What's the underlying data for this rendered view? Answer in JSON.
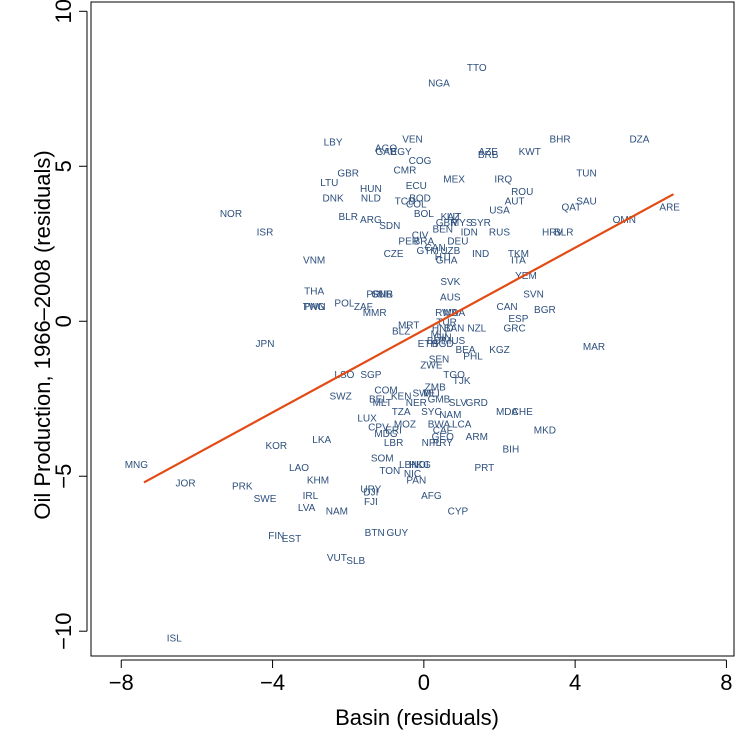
{
  "chart_data": {
    "type": "scatter",
    "xlabel": "Basin (residuals)",
    "ylabel": "Oil Production, 1966–2008 (residuals)",
    "xlim": [
      -8.8,
      8.2
    ],
    "ylim": [
      -10.8,
      10.3
    ],
    "xticks": [
      -8,
      -4,
      0,
      4,
      8
    ],
    "yticks": [
      -10,
      -5,
      0,
      5,
      10
    ],
    "xtick_labels": [
      "−8",
      "−4",
      "0",
      "4",
      "8"
    ],
    "ytick_labels": [
      "−10",
      "−5",
      "0",
      "5",
      "10"
    ],
    "grid": false,
    "fit_line": {
      "x": [
        -7.4,
        6.6
      ],
      "y": [
        -5.2,
        4.1
      ],
      "color": "#e34a14"
    },
    "label_color": "#2d4f7c",
    "points": [
      {
        "label": "TTO",
        "x": 1.4,
        "y": 8.2
      },
      {
        "label": "NGA",
        "x": 0.4,
        "y": 7.7
      },
      {
        "label": "BHR",
        "x": 3.6,
        "y": 5.9
      },
      {
        "label": "DZA",
        "x": 5.7,
        "y": 5.9
      },
      {
        "label": "LBY",
        "x": -2.4,
        "y": 5.8
      },
      {
        "label": "VEN",
        "x": -0.3,
        "y": 5.9
      },
      {
        "label": "AGO",
        "x": -1.0,
        "y": 5.6
      },
      {
        "label": "GAB",
        "x": -1.0,
        "y": 5.5
      },
      {
        "label": "EGY",
        "x": -0.6,
        "y": 5.5
      },
      {
        "label": "AZE",
        "x": 1.7,
        "y": 5.5
      },
      {
        "label": "BRB",
        "x": 1.7,
        "y": 5.4
      },
      {
        "label": "KWT",
        "x": 2.8,
        "y": 5.5
      },
      {
        "label": "COG",
        "x": -0.1,
        "y": 5.2
      },
      {
        "label": "CMR",
        "x": -0.5,
        "y": 4.9
      },
      {
        "label": "GBR",
        "x": -2.0,
        "y": 4.8
      },
      {
        "label": "TUN",
        "x": 4.3,
        "y": 4.8
      },
      {
        "label": "MEX",
        "x": 0.8,
        "y": 4.6
      },
      {
        "label": "IRQ",
        "x": 2.1,
        "y": 4.6
      },
      {
        "label": "LTU",
        "x": -2.5,
        "y": 4.5
      },
      {
        "label": "ECU",
        "x": -0.2,
        "y": 4.4
      },
      {
        "label": "HUN",
        "x": -1.4,
        "y": 4.3
      },
      {
        "label": "ROU",
        "x": 2.6,
        "y": 4.2
      },
      {
        "label": "DNK",
        "x": -2.4,
        "y": 4.0
      },
      {
        "label": "NLD",
        "x": -1.4,
        "y": 4.0
      },
      {
        "label": "BOD",
        "x": -0.1,
        "y": 4.0
      },
      {
        "label": "TCD",
        "x": -0.5,
        "y": 3.9
      },
      {
        "label": "AUT",
        "x": 2.4,
        "y": 3.9
      },
      {
        "label": "SAU",
        "x": 4.3,
        "y": 3.9
      },
      {
        "label": "COL",
        "x": -0.2,
        "y": 3.8
      },
      {
        "label": "QAT",
        "x": 3.9,
        "y": 3.7
      },
      {
        "label": "NOR",
        "x": -5.1,
        "y": 3.5
      },
      {
        "label": "USA",
        "x": 2.0,
        "y": 3.6
      },
      {
        "label": "ARE",
        "x": 6.5,
        "y": 3.7
      },
      {
        "label": "BOL",
        "x": 0.0,
        "y": 3.5
      },
      {
        "label": "KAZ",
        "x": 0.7,
        "y": 3.4
      },
      {
        "label": "LIT",
        "x": 0.8,
        "y": 3.4
      },
      {
        "label": "MYS",
        "x": 1.0,
        "y": 3.2
      },
      {
        "label": "SYR",
        "x": 1.5,
        "y": 3.2
      },
      {
        "label": "BLR",
        "x": -2.0,
        "y": 3.4
      },
      {
        "label": "ARG",
        "x": -1.4,
        "y": 3.3
      },
      {
        "label": "OMN",
        "x": 5.3,
        "y": 3.3
      },
      {
        "label": "GBR",
        "x": 0.6,
        "y": 3.2
      },
      {
        "label": "SDN",
        "x": -0.9,
        "y": 3.1
      },
      {
        "label": "BEN",
        "x": 0.5,
        "y": 3.0
      },
      {
        "label": "IDN",
        "x": 1.2,
        "y": 2.9
      },
      {
        "label": "RUS",
        "x": 2.0,
        "y": 2.9
      },
      {
        "label": "HRV",
        "x": 3.4,
        "y": 2.9
      },
      {
        "label": "BLR",
        "x": 3.7,
        "y": 2.9
      },
      {
        "label": "ISR",
        "x": -4.2,
        "y": 2.9
      },
      {
        "label": "CIV",
        "x": -0.1,
        "y": 2.8
      },
      {
        "label": "PER",
        "x": -0.4,
        "y": 2.6
      },
      {
        "label": "BRA",
        "x": 0.0,
        "y": 2.6
      },
      {
        "label": "DEU",
        "x": 0.9,
        "y": 2.6
      },
      {
        "label": "CAN",
        "x": 0.3,
        "y": 2.4
      },
      {
        "label": "CZE",
        "x": -0.8,
        "y": 2.2
      },
      {
        "label": "GTM",
        "x": 0.1,
        "y": 2.3
      },
      {
        "label": "UZB",
        "x": 0.7,
        "y": 2.3
      },
      {
        "label": "IND",
        "x": 1.5,
        "y": 2.2
      },
      {
        "label": "TKM",
        "x": 2.5,
        "y": 2.2
      },
      {
        "label": "HTI",
        "x": 0.5,
        "y": 2.1
      },
      {
        "label": "GHA",
        "x": 0.6,
        "y": 2.0
      },
      {
        "label": "ITA",
        "x": 2.5,
        "y": 2.0
      },
      {
        "label": "VNM",
        "x": -2.9,
        "y": 2.0
      },
      {
        "label": "YEM",
        "x": 2.7,
        "y": 1.5
      },
      {
        "label": "SVK",
        "x": 0.7,
        "y": 1.3
      },
      {
        "label": "THA",
        "x": -2.9,
        "y": 1.0
      },
      {
        "label": "SVN",
        "x": 2.9,
        "y": 0.9
      },
      {
        "label": "PRI",
        "x": -1.3,
        "y": 0.9
      },
      {
        "label": "SUR",
        "x": -1.1,
        "y": 0.9
      },
      {
        "label": "GNB",
        "x": -1.1,
        "y": 0.9
      },
      {
        "label": "AUS",
        "x": 0.7,
        "y": 0.8
      },
      {
        "label": "POL",
        "x": -2.1,
        "y": 0.6
      },
      {
        "label": "ZAF",
        "x": -1.6,
        "y": 0.5
      },
      {
        "label": "CAN",
        "x": 2.2,
        "y": 0.5
      },
      {
        "label": "TWN",
        "x": -2.9,
        "y": 0.5
      },
      {
        "label": "PNG",
        "x": -2.9,
        "y": 0.5
      },
      {
        "label": "BGR",
        "x": 3.2,
        "y": 0.4
      },
      {
        "label": "MMR",
        "x": -1.3,
        "y": 0.3
      },
      {
        "label": "RWA",
        "x": 0.6,
        "y": 0.3
      },
      {
        "label": "MDA",
        "x": 0.8,
        "y": 0.3
      },
      {
        "label": "ESP",
        "x": 2.5,
        "y": 0.1
      },
      {
        "label": "TUR",
        "x": 0.6,
        "y": 0.0
      },
      {
        "label": "MRT",
        "x": -0.4,
        "y": -0.1
      },
      {
        "label": "GRC",
        "x": 2.4,
        "y": -0.2
      },
      {
        "label": "HND",
        "x": 0.5,
        "y": -0.2
      },
      {
        "label": "BAN",
        "x": 0.8,
        "y": -0.2
      },
      {
        "label": "NZL",
        "x": 1.4,
        "y": -0.2
      },
      {
        "label": "BLZ",
        "x": -0.6,
        "y": -0.3
      },
      {
        "label": "MLI",
        "x": 0.4,
        "y": -0.4
      },
      {
        "label": "GIN",
        "x": 0.5,
        "y": -0.5
      },
      {
        "label": "BDI",
        "x": 0.3,
        "y": -0.6
      },
      {
        "label": "MUS",
        "x": 0.8,
        "y": -0.6
      },
      {
        "label": "ETH",
        "x": 0.1,
        "y": -0.7
      },
      {
        "label": "BGD",
        "x": 0.5,
        "y": -0.7
      },
      {
        "label": "KGZ",
        "x": 2.0,
        "y": -0.9
      },
      {
        "label": "MAR",
        "x": 4.5,
        "y": -0.8
      },
      {
        "label": "JPN",
        "x": -4.2,
        "y": -0.7
      },
      {
        "label": "BEA",
        "x": 1.1,
        "y": -0.9
      },
      {
        "label": "PHL",
        "x": 1.3,
        "y": -1.1
      },
      {
        "label": "SEN",
        "x": 0.4,
        "y": -1.2
      },
      {
        "label": "ZWE",
        "x": 0.2,
        "y": -1.4
      },
      {
        "label": "LSO",
        "x": -2.1,
        "y": -1.7
      },
      {
        "label": "SGP",
        "x": -1.4,
        "y": -1.7
      },
      {
        "label": "TGO",
        "x": 0.8,
        "y": -1.7
      },
      {
        "label": "TJK",
        "x": 1.0,
        "y": -1.9
      },
      {
        "label": "ZMB",
        "x": 0.3,
        "y": -2.1
      },
      {
        "label": "COM",
        "x": -1.0,
        "y": -2.2
      },
      {
        "label": "SWE",
        "x": 0.0,
        "y": -2.3
      },
      {
        "label": "MLI",
        "x": 0.2,
        "y": -2.3
      },
      {
        "label": "SWZ",
        "x": -2.2,
        "y": -2.4
      },
      {
        "label": "BEL",
        "x": -1.2,
        "y": -2.5
      },
      {
        "label": "KEN",
        "x": -0.6,
        "y": -2.4
      },
      {
        "label": "GMB",
        "x": 0.4,
        "y": -2.5
      },
      {
        "label": "SLV",
        "x": 0.9,
        "y": -2.6
      },
      {
        "label": "GRD",
        "x": 1.4,
        "y": -2.6
      },
      {
        "label": "MLT",
        "x": -1.1,
        "y": -2.6
      },
      {
        "label": "NER",
        "x": -0.2,
        "y": -2.6
      },
      {
        "label": "TZA",
        "x": -0.6,
        "y": -2.9
      },
      {
        "label": "SYC",
        "x": 0.2,
        "y": -2.9
      },
      {
        "label": "NAM",
        "x": 0.7,
        "y": -3.0
      },
      {
        "label": "MDA",
        "x": 2.2,
        "y": -2.9
      },
      {
        "label": "CHE",
        "x": 2.6,
        "y": -2.9
      },
      {
        "label": "LUX",
        "x": -1.5,
        "y": -3.1
      },
      {
        "label": "MOZ",
        "x": -0.5,
        "y": -3.3
      },
      {
        "label": "BWA",
        "x": 0.4,
        "y": -3.3
      },
      {
        "label": "LCA",
        "x": 1.0,
        "y": -3.3
      },
      {
        "label": "CPV",
        "x": -1.2,
        "y": -3.4
      },
      {
        "label": "ERI",
        "x": -0.8,
        "y": -3.5
      },
      {
        "label": "CAF",
        "x": 0.5,
        "y": -3.5
      },
      {
        "label": "MKD",
        "x": 3.2,
        "y": -3.5
      },
      {
        "label": "MDG",
        "x": -1.0,
        "y": -3.6
      },
      {
        "label": "GEO",
        "x": 0.5,
        "y": -3.7
      },
      {
        "label": "ARM",
        "x": 1.4,
        "y": -3.7
      },
      {
        "label": "LKA",
        "x": -2.7,
        "y": -3.8
      },
      {
        "label": "LBR",
        "x": -0.8,
        "y": -3.9
      },
      {
        "label": "NPL",
        "x": 0.2,
        "y": -3.9
      },
      {
        "label": "PRY",
        "x": 0.5,
        "y": -3.9
      },
      {
        "label": "KOR",
        "x": -3.9,
        "y": -4.0
      },
      {
        "label": "BIH",
        "x": 2.3,
        "y": -4.1
      },
      {
        "label": "SOM",
        "x": -1.1,
        "y": -4.4
      },
      {
        "label": "LBN",
        "x": -0.4,
        "y": -4.6
      },
      {
        "label": "HKG",
        "x": -0.1,
        "y": -4.6
      },
      {
        "label": "NDI",
        "x": -0.1,
        "y": -4.6
      },
      {
        "label": "LAO",
        "x": -3.3,
        "y": -4.7
      },
      {
        "label": "PRT",
        "x": 1.6,
        "y": -4.7
      },
      {
        "label": "TON",
        "x": -0.9,
        "y": -4.8
      },
      {
        "label": "NIC",
        "x": -0.3,
        "y": -4.9
      },
      {
        "label": "MNG",
        "x": -7.6,
        "y": -4.6
      },
      {
        "label": "KHM",
        "x": -2.8,
        "y": -5.1
      },
      {
        "label": "PAN",
        "x": -0.2,
        "y": -5.1
      },
      {
        "label": "JOR",
        "x": -6.3,
        "y": -5.2
      },
      {
        "label": "PRK",
        "x": -4.8,
        "y": -5.3
      },
      {
        "label": "URY",
        "x": -1.4,
        "y": -5.4
      },
      {
        "label": "DJI",
        "x": -1.4,
        "y": -5.5
      },
      {
        "label": "AFG",
        "x": 0.2,
        "y": -5.6
      },
      {
        "label": "IRL",
        "x": -3.0,
        "y": -5.6
      },
      {
        "label": "SWE",
        "x": -4.2,
        "y": -5.7
      },
      {
        "label": "FJI",
        "x": -1.4,
        "y": -5.8
      },
      {
        "label": "LVA",
        "x": -3.1,
        "y": -6.0
      },
      {
        "label": "NAM",
        "x": -2.3,
        "y": -6.1
      },
      {
        "label": "CYP",
        "x": 0.9,
        "y": -6.1
      },
      {
        "label": "FIN",
        "x": -3.9,
        "y": -6.9
      },
      {
        "label": "EST",
        "x": -3.5,
        "y": -7.0
      },
      {
        "label": "BTN",
        "x": -1.3,
        "y": -6.8
      },
      {
        "label": "GUY",
        "x": -0.7,
        "y": -6.8
      },
      {
        "label": "VUT",
        "x": -2.3,
        "y": -7.6
      },
      {
        "label": "SLB",
        "x": -1.8,
        "y": -7.7
      },
      {
        "label": "ISL",
        "x": -6.6,
        "y": -10.2
      }
    ]
  }
}
